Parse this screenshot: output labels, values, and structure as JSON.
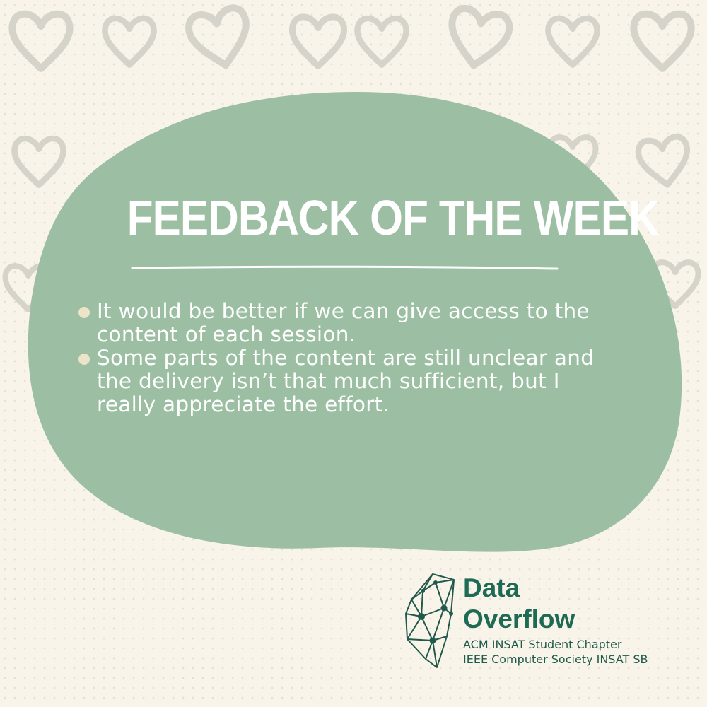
{
  "colors": {
    "background": "#f8f4ea",
    "blob": "#9cbfa3",
    "heading_text": "#ffffff",
    "bullet": "#ece4c8",
    "brand_green": "#1f6a55",
    "heart_outline": "#d6d4ca"
  },
  "post": {
    "title": "FEEDBACK OF THE WEEK",
    "feedback": [
      "It would be better if we can give access to the content of each session.",
      "Some parts of the content are still unclear and the delivery isn’t that much sufficient, but I really appreciate the effort."
    ]
  },
  "brand": {
    "name_line1": "Data",
    "name_line2": "Overflow",
    "org_line1": "ACM INSAT Student Chapter",
    "org_line2": "IEEE Computer Society INSAT SB",
    "logo_icon": "network-brain-icon"
  }
}
